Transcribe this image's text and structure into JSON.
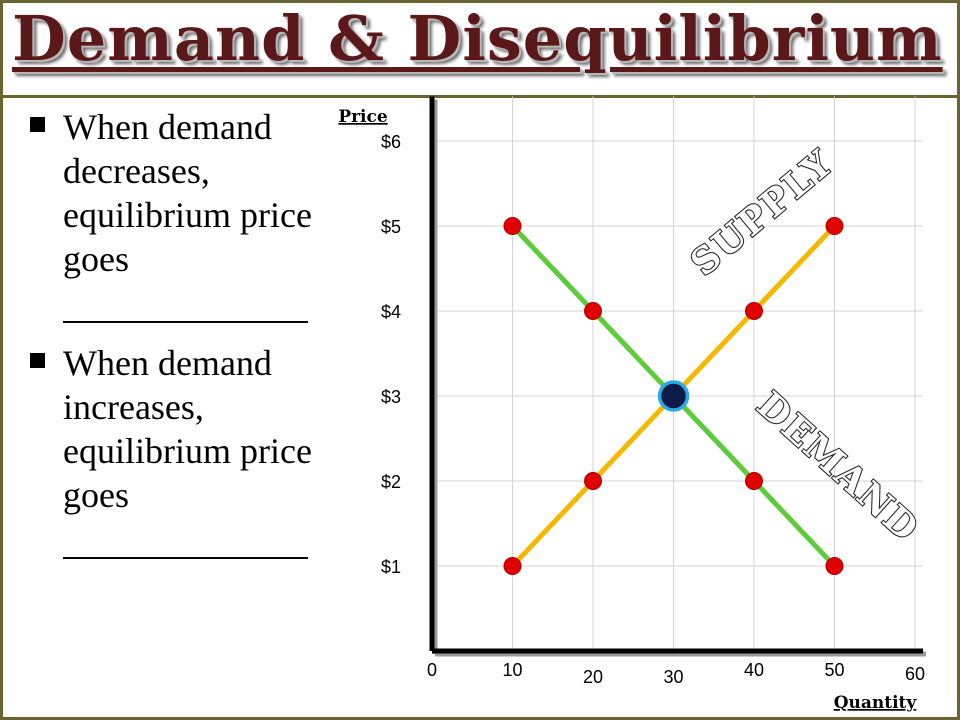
{
  "slide": {
    "title": "Demand & Disequilibrium",
    "bullets": [
      {
        "text": "When demand decreases, equilibrium price goes",
        "blank": ""
      },
      {
        "text": "When demand increases, equilibrium price goes",
        "blank": ""
      }
    ]
  },
  "chart_data": {
    "type": "line",
    "xlabel": "Quantity",
    "ylabel": "Price",
    "xlim": [
      0,
      60
    ],
    "ylim": [
      0,
      6.5
    ],
    "grid": true,
    "x_ticks": [
      {
        "value": 0,
        "label": "0"
      },
      {
        "value": 10,
        "label": "10"
      },
      {
        "value": 20,
        "label": "20"
      },
      {
        "value": 30,
        "label": "30"
      },
      {
        "value": 40,
        "label": "40"
      },
      {
        "value": 50,
        "label": "50"
      },
      {
        "value": 60,
        "label": "60"
      }
    ],
    "y_ticks": [
      {
        "value": 1,
        "label": "$1"
      },
      {
        "value": 2,
        "label": "$2"
      },
      {
        "value": 3,
        "label": "$3"
      },
      {
        "value": 4,
        "label": "$4"
      },
      {
        "value": 5,
        "label": "$5"
      },
      {
        "value": 6,
        "label": "$6"
      }
    ],
    "series": [
      {
        "name": "DEMAND",
        "color": "#5ccc3a",
        "points": [
          {
            "x": 10,
            "y": 5
          },
          {
            "x": 20,
            "y": 4
          },
          {
            "x": 30,
            "y": 3
          },
          {
            "x": 40,
            "y": 2
          },
          {
            "x": 50,
            "y": 1
          }
        ]
      },
      {
        "name": "SUPPLY",
        "color": "#f5b800",
        "points": [
          {
            "x": 10,
            "y": 1
          },
          {
            "x": 20,
            "y": 2
          },
          {
            "x": 30,
            "y": 3
          },
          {
            "x": 40,
            "y": 4
          },
          {
            "x": 50,
            "y": 5
          }
        ]
      }
    ],
    "equilibrium": {
      "x": 30,
      "y": 3,
      "color": "#0d1a4a",
      "ring_color": "#2aa8e8"
    },
    "point_color": "#e00000"
  }
}
